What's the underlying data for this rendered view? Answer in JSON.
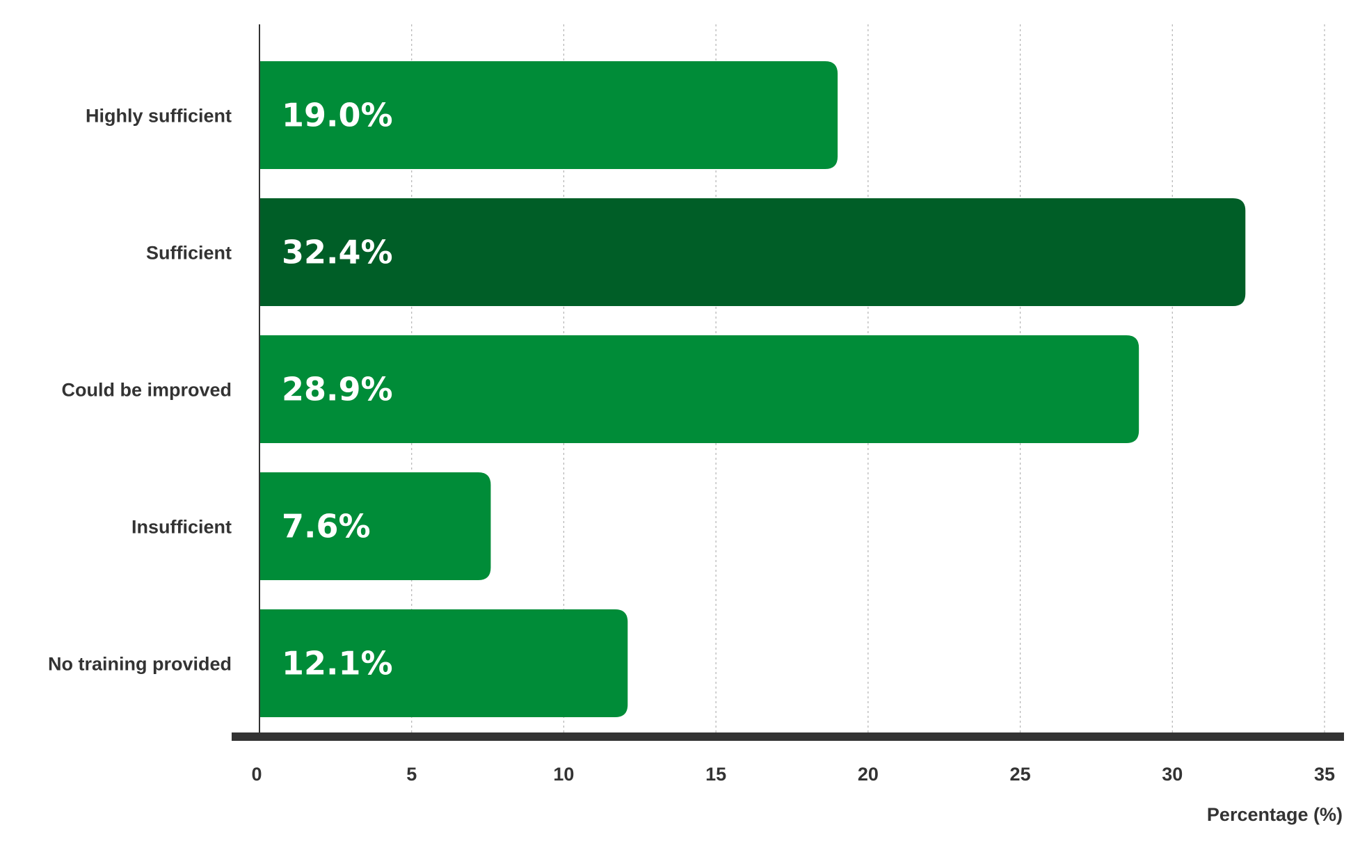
{
  "chart_data": {
    "type": "bar",
    "orientation": "horizontal",
    "categories": [
      "Highly sufficient",
      "Sufficient",
      "Could be improved",
      "Insufficient",
      "No training provided"
    ],
    "values": [
      19.0,
      32.4,
      28.9,
      7.6,
      12.1
    ],
    "data_labels": [
      "19.0%",
      "32.4%",
      "28.9%",
      "7.6%",
      "12.1%"
    ],
    "highlight_index": 1,
    "xlabel": "Percentage (%)",
    "ylabel": "",
    "xlim": [
      0,
      35
    ],
    "x_ticks": [
      0,
      5,
      10,
      15,
      20,
      25,
      30,
      35
    ],
    "x_tick_labels": [
      "0",
      "5",
      "10",
      "15",
      "20",
      "25",
      "30",
      "35"
    ],
    "grid": "vertical dotted",
    "legend": "none",
    "colors": {
      "bar": "#008c38",
      "highlight": "#005e27",
      "axis": "#333333",
      "text": "#333333",
      "bar_text": "#ffffff"
    }
  }
}
